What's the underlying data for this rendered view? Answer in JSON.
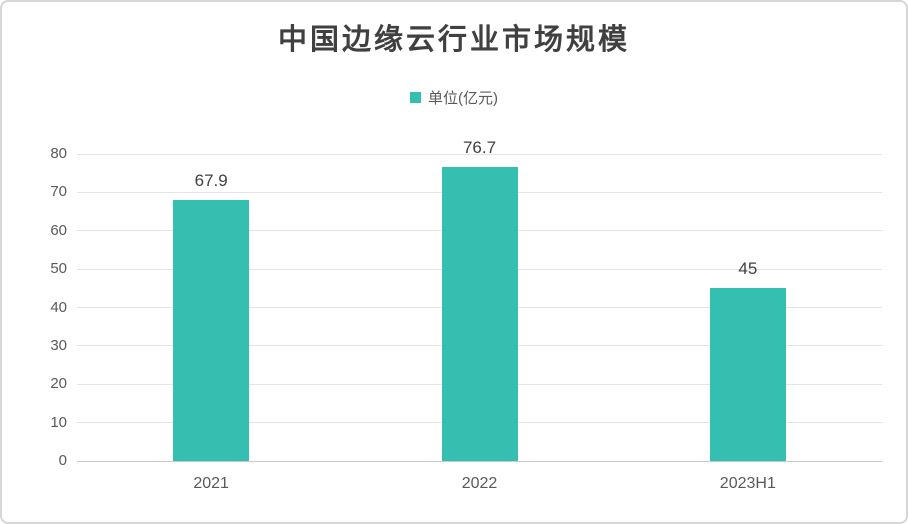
{
  "chart_data": {
    "type": "bar",
    "title": "中国边缘云行业市场规模",
    "legend": [
      {
        "label": "单位(亿元)",
        "color": "#35bfb1"
      }
    ],
    "legend_position": "top-center",
    "categories": [
      "2021",
      "2022",
      "2023H1"
    ],
    "series": [
      {
        "name": "单位(亿元)",
        "values": [
          67.9,
          76.7,
          45
        ]
      }
    ],
    "data_labels": [
      "67.9",
      "76.7",
      "45"
    ],
    "xlabel": "",
    "ylabel": "",
    "ylim": [
      0,
      80
    ],
    "yticks": [
      0,
      10,
      20,
      30,
      40,
      50,
      60,
      70,
      80
    ],
    "grid": true,
    "bar_color": "#35bfb1"
  },
  "styles": {
    "title_color": "#404040",
    "axis_label_color": "#595959",
    "data_label_color": "#404040",
    "gridline_color": "#e4e4e4",
    "baseline_color": "#c9c9c9",
    "card_border_color": "#d6d6d6",
    "background": "#ffffff"
  }
}
